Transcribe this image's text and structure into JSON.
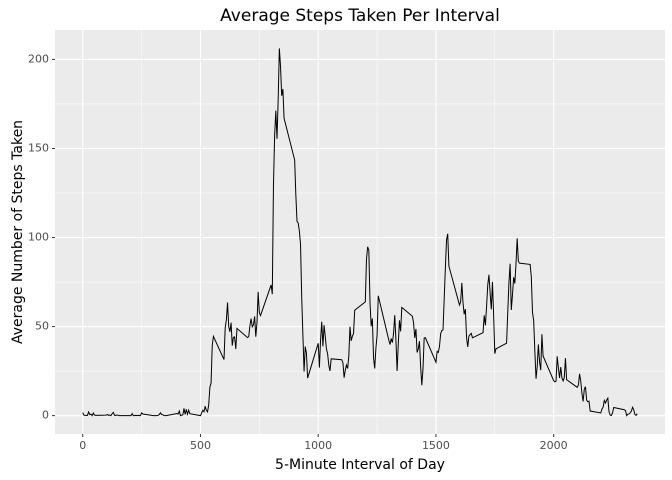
{
  "chart_data": {
    "type": "line",
    "title": "Average Steps Taken Per Interval",
    "x_label": "5-Minute Interval of Day",
    "y_label": "Average Number of Steps Taken",
    "xlim": [
      -117.75,
      2472.75
    ],
    "ylim": [
      -10.3,
      216.5
    ],
    "xticks": [
      0,
      500,
      1000,
      1500,
      2000
    ],
    "yticks": [
      0,
      50,
      100,
      150,
      200
    ],
    "grid": true,
    "series": [
      {
        "color": "#000000",
        "x": [
          0,
          5,
          10,
          15,
          20,
          25,
          30,
          35,
          40,
          45,
          50,
          55,
          100,
          105,
          110,
          115,
          120,
          125,
          130,
          135,
          140,
          145,
          150,
          155,
          200,
          205,
          210,
          215,
          220,
          225,
          230,
          235,
          240,
          245,
          250,
          255,
          300,
          305,
          310,
          315,
          320,
          325,
          330,
          335,
          340,
          345,
          350,
          355,
          400,
          405,
          410,
          415,
          420,
          425,
          430,
          435,
          440,
          445,
          450,
          455,
          500,
          505,
          510,
          515,
          520,
          525,
          530,
          535,
          540,
          545,
          550,
          555,
          600,
          605,
          610,
          615,
          620,
          625,
          630,
          635,
          640,
          645,
          650,
          655,
          700,
          705,
          710,
          715,
          720,
          725,
          730,
          735,
          740,
          745,
          750,
          755,
          800,
          805,
          810,
          815,
          820,
          825,
          830,
          835,
          840,
          845,
          850,
          855,
          900,
          905,
          910,
          915,
          920,
          925,
          930,
          935,
          940,
          945,
          950,
          955,
          1000,
          1005,
          1010,
          1015,
          1020,
          1025,
          1030,
          1035,
          1040,
          1045,
          1050,
          1055,
          1100,
          1105,
          1110,
          1115,
          1120,
          1125,
          1130,
          1135,
          1140,
          1145,
          1150,
          1155,
          1200,
          1205,
          1210,
          1215,
          1220,
          1225,
          1230,
          1235,
          1240,
          1245,
          1250,
          1255,
          1300,
          1305,
          1310,
          1315,
          1320,
          1325,
          1330,
          1335,
          1340,
          1345,
          1350,
          1355,
          1400,
          1405,
          1410,
          1415,
          1420,
          1425,
          1430,
          1435,
          1440,
          1445,
          1450,
          1455,
          1500,
          1505,
          1510,
          1515,
          1520,
          1525,
          1530,
          1535,
          1540,
          1545,
          1550,
          1555,
          1600,
          1605,
          1610,
          1615,
          1620,
          1625,
          1630,
          1635,
          1640,
          1645,
          1650,
          1655,
          1700,
          1705,
          1710,
          1715,
          1720,
          1725,
          1730,
          1735,
          1740,
          1745,
          1750,
          1755,
          1800,
          1805,
          1810,
          1815,
          1820,
          1825,
          1830,
          1835,
          1840,
          1845,
          1850,
          1855,
          1900,
          1905,
          1910,
          1915,
          1920,
          1925,
          1930,
          1935,
          1940,
          1945,
          1950,
          1955,
          2000,
          2005,
          2010,
          2015,
          2020,
          2025,
          2030,
          2035,
          2040,
          2045,
          2050,
          2055,
          2100,
          2105,
          2110,
          2115,
          2120,
          2125,
          2130,
          2135,
          2140,
          2145,
          2150,
          2155,
          2200,
          2205,
          2210,
          2215,
          2220,
          2225,
          2230,
          2235,
          2240,
          2245,
          2250,
          2255,
          2300,
          2305,
          2310,
          2315,
          2320,
          2325,
          2330,
          2335,
          2340,
          2345,
          2350,
          2355
        ],
        "values": [
          1.72,
          0.34,
          0.13,
          0.15,
          0.08,
          2.09,
          0.53,
          0.87,
          0,
          1.47,
          0.3,
          0.13,
          0.32,
          0.68,
          0.15,
          0.34,
          0,
          1.11,
          1.83,
          0.17,
          0.17,
          0.38,
          0.26,
          0,
          0,
          0,
          1.13,
          0,
          0,
          0.13,
          0,
          0.23,
          0,
          0,
          1.55,
          0.94,
          0,
          0,
          0,
          0,
          0.2,
          0.6,
          1.6,
          0.6,
          0.5,
          0.08,
          0,
          0,
          1.2,
          0.9,
          2.6,
          0,
          0.3,
          0.4,
          4.1,
          0.7,
          3.5,
          0.8,
          3.1,
          1.1,
          0,
          1.6,
          3,
          2.2,
          5.3,
          3,
          2.1,
          6.1,
          16,
          18.3,
          39.5,
          44.5,
          31.5,
          49.3,
          53.8,
          63.5,
          50,
          47.1,
          52.2,
          39.3,
          44,
          44.2,
          37.4,
          49,
          43.8,
          44.4,
          50.5,
          54.5,
          49.9,
          51,
          55.7,
          44.3,
          52.3,
          69.5,
          57.8,
          56.2,
          73.4,
          68.2,
          129.4,
          157.5,
          171.2,
          155.4,
          177.3,
          206.2,
          195.9,
          179.6,
          183.4,
          167,
          143.5,
          124,
          109.1,
          108.1,
          103.7,
          95.97,
          66.2,
          45.2,
          24.8,
          38.8,
          34.98,
          21.1,
          40.6,
          26.98,
          42.4,
          52.7,
          38.9,
          50.8,
          44.3,
          37.4,
          34.7,
          28.3,
          25.1,
          31.9,
          31.4,
          29.7,
          21.3,
          25.5,
          28.4,
          26.5,
          33.4,
          49.98,
          42,
          44.6,
          46,
          59.2,
          63.9,
          87.7,
          94.8,
          92.8,
          63.4,
          50.2,
          54.5,
          32.4,
          26.5,
          37.7,
          45.1,
          67.3,
          42.3,
          39.9,
          43.3,
          40.98,
          46.2,
          56.4,
          42.8,
          25.1,
          39.97,
          53.5,
          47.3,
          60.8,
          55.8,
          51.96,
          43.6,
          48.7,
          35.5,
          37.5,
          41.8,
          27.5,
          17.1,
          26.1,
          43.6,
          43.8,
          30,
          36.1,
          35.5,
          38.8,
          45.96,
          47.8,
          48.1,
          65.3,
          82.9,
          98.7,
          102.1,
          83.96,
          62.1,
          64.1,
          74.5,
          63.2,
          56.9,
          59.8,
          43.9,
          38.6,
          44.7,
          45.5,
          46.2,
          43.7,
          46.6,
          56.3,
          50.7,
          61.2,
          73.4,
          79.1,
          68.9,
          59.7,
          75.1,
          56.5,
          34.8,
          37.5,
          40.7,
          58,
          74.7,
          85.3,
          59.3,
          67.8,
          77.7,
          74.2,
          85.3,
          99.5,
          86.6,
          85.6,
          84.9,
          77.8,
          58,
          53.4,
          36.3,
          20.7,
          27.4,
          40,
          30.2,
          25.5,
          45.7,
          33.5,
          19.6,
          19,
          19.3,
          33.3,
          26.8,
          21.2,
          27.3,
          21.3,
          19.5,
          21.3,
          32.3,
          20.2,
          15.9,
          17.2,
          23.5,
          19.2,
          12.5,
          8,
          14.7,
          16.3,
          8.7,
          7.8,
          8.1,
          2.6,
          1.5,
          3.7,
          4.8,
          8.5,
          7.1,
          8.7,
          9.8,
          2.2,
          0.3,
          0.1,
          1.6,
          4.6,
          3.3,
          2.8,
          0,
          0.8,
          0.96,
          1.6,
          2.6,
          4.7,
          3.3,
          0.6,
          0.2,
          1.1
        ]
      }
    ]
  }
}
